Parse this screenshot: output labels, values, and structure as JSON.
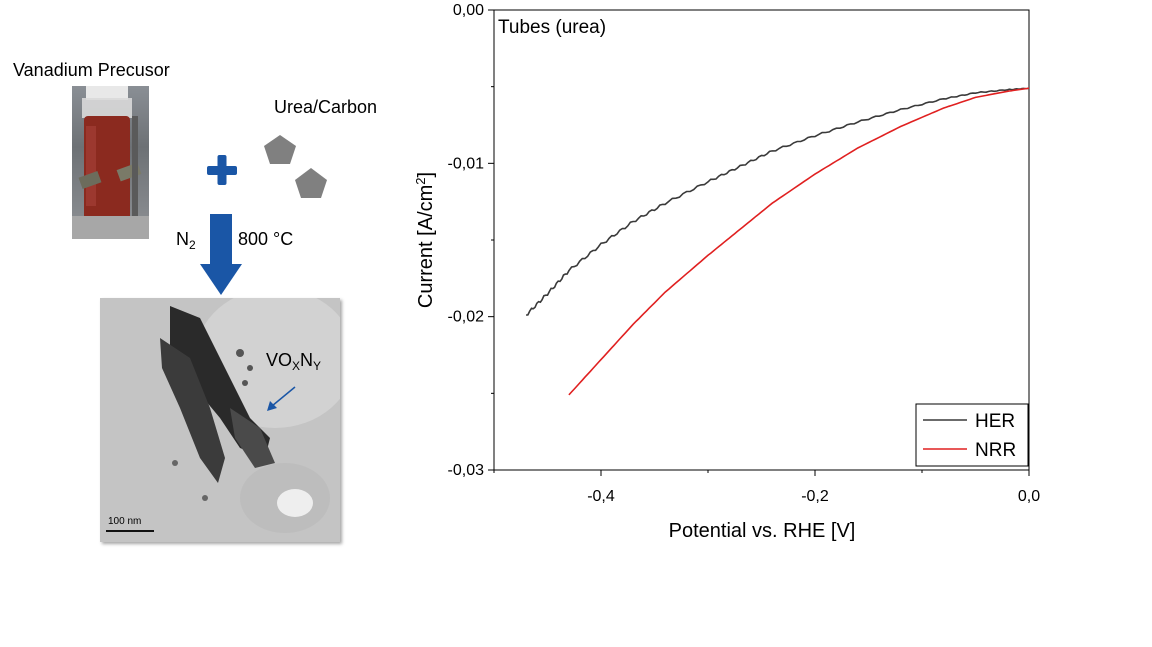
{
  "scheme": {
    "precursor_label": "Vanadium  Precusor",
    "additive_label": "Urea/Carbon",
    "atmosphere": {
      "main": "N",
      "sub": "2"
    },
    "temperature": "800 °C",
    "product": {
      "v": "VO",
      "x": "X",
      "n": "N",
      "y": "Y"
    },
    "scalebar": "100 nm",
    "colors": {
      "arrow": "#1a56a6",
      "plus": "#1a56a6",
      "pentagon": "#808080"
    }
  },
  "chart_data": {
    "type": "line",
    "title": "Tubes (urea)",
    "xlabel": "Potential vs. RHE [V]",
    "ylabel_main": "Current [A/cm",
    "ylabel_sup": "2",
    "ylabel_end": "]",
    "xlim": [
      -0.5,
      0.0
    ],
    "ylim": [
      -0.03,
      0.0
    ],
    "xticks": [
      -0.4,
      -0.2,
      0.0
    ],
    "xtick_labels": [
      "-0,4",
      "-0,2",
      "0,0"
    ],
    "yticks": [
      0.0,
      -0.01,
      -0.02,
      -0.03
    ],
    "ytick_labels": [
      "0,00",
      "-0,01",
      "-0,02",
      "-0,03"
    ],
    "legend_position": "bottom-right",
    "grid": false,
    "series": [
      {
        "name": "HER",
        "color": "#3a3a3a",
        "noisy": true,
        "x": [
          -0.47,
          -0.45,
          -0.43,
          -0.4,
          -0.37,
          -0.34,
          -0.3,
          -0.27,
          -0.24,
          -0.2,
          -0.16,
          -0.12,
          -0.08,
          -0.05,
          -0.02,
          0.0
        ],
        "y": [
          -0.0199,
          -0.0185,
          -0.017,
          -0.0153,
          -0.0138,
          -0.0126,
          -0.0112,
          -0.0102,
          -0.0092,
          -0.0082,
          -0.0073,
          -0.0065,
          -0.0058,
          -0.0054,
          -0.0052,
          -0.0051
        ]
      },
      {
        "name": "NRR",
        "color": "#e02020",
        "noisy": false,
        "x": [
          -0.43,
          -0.4,
          -0.37,
          -0.34,
          -0.3,
          -0.27,
          -0.24,
          -0.2,
          -0.16,
          -0.12,
          -0.08,
          -0.05,
          -0.02,
          0.0
        ],
        "y": [
          -0.0251,
          -0.0228,
          -0.0205,
          -0.0184,
          -0.016,
          -0.0143,
          -0.0126,
          -0.0107,
          -0.009,
          -0.0076,
          -0.0064,
          -0.0057,
          -0.0053,
          -0.0051
        ]
      }
    ]
  }
}
